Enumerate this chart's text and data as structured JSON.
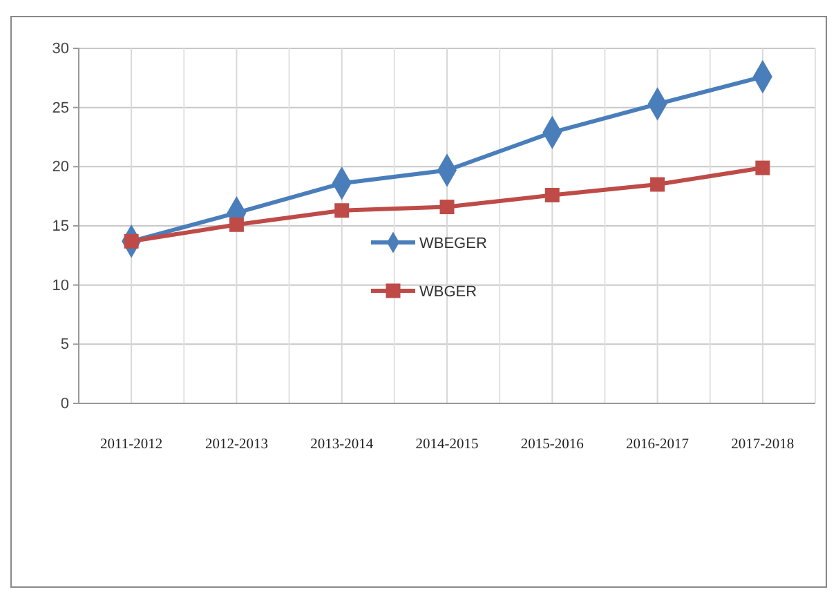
{
  "chart_data": {
    "type": "line",
    "categories": [
      "2011-2012",
      "2012-2013",
      "2013-2014",
      "2014-2015",
      "2015-2016",
      "2016-2017",
      "2017-2018"
    ],
    "series": [
      {
        "name": "WBEGER",
        "color": "#4a7ebb",
        "marker": "diamond",
        "values": [
          13.7,
          16.1,
          18.6,
          19.7,
          22.9,
          25.3,
          27.6
        ]
      },
      {
        "name": "WBGER",
        "color": "#be4b48",
        "marker": "square",
        "values": [
          13.7,
          15.1,
          16.3,
          16.6,
          17.6,
          18.5,
          19.9
        ]
      }
    ],
    "ylim": [
      0,
      30
    ],
    "yticks": [
      0,
      5,
      10,
      15,
      20,
      25,
      30
    ],
    "grid": true,
    "legend": "center"
  }
}
